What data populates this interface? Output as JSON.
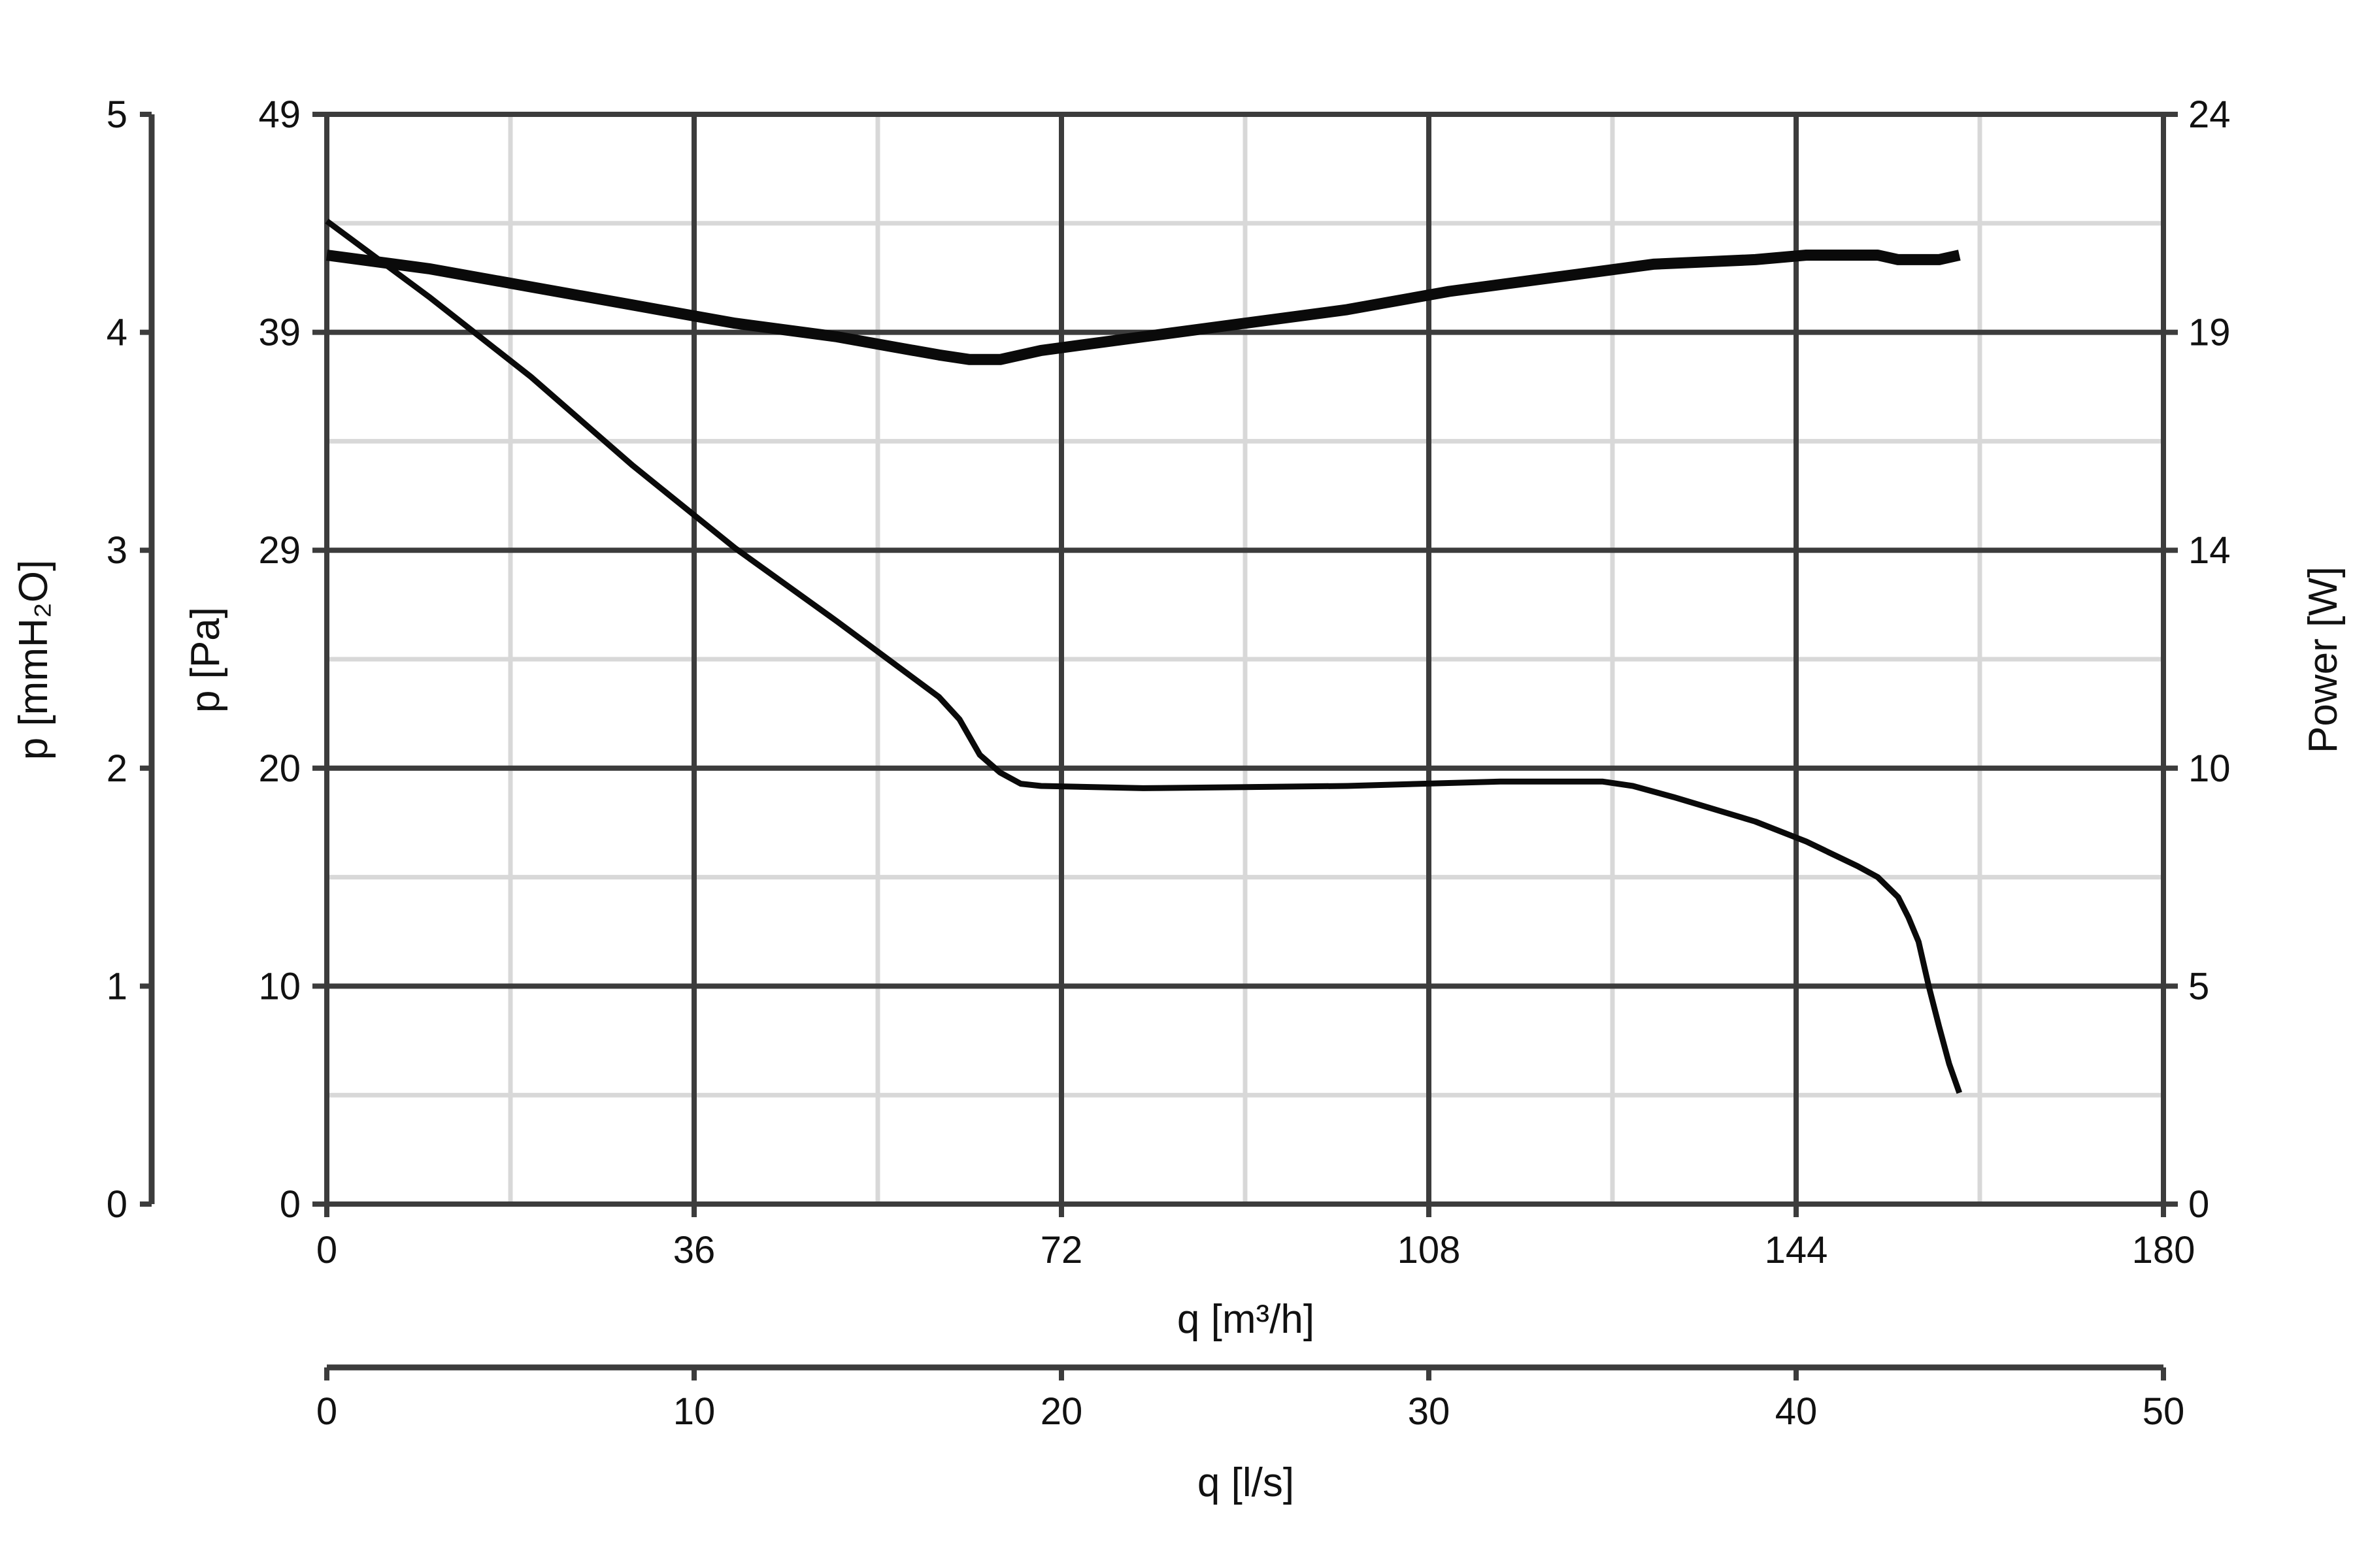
{
  "chart_data": {
    "type": "line",
    "xlabel": "q [m³/h]",
    "xlabel_secondary": "q [l/s]",
    "ylabel": "p [Pa]",
    "ylabel_secondary_left": "p [mmH₂O]",
    "ylabel_right": "Power [W]",
    "xlim": [
      0,
      180
    ],
    "ylim": [
      0,
      49
    ],
    "y_mmh2o_lim": [
      0,
      5
    ],
    "y_power_lim": [
      0,
      24
    ],
    "x_secondary_lim": [
      0,
      50
    ],
    "x_ticks": [
      "0",
      "36",
      "72",
      "108",
      "144",
      "180"
    ],
    "x_secondary_ticks": [
      "0",
      "10",
      "20",
      "30",
      "40",
      "50"
    ],
    "y_ticks": [
      "0",
      "10",
      "20",
      "29",
      "39",
      "49"
    ],
    "y_mmh2o_ticks": [
      "0",
      "1",
      "2",
      "3",
      "4",
      "5"
    ],
    "y_power_ticks": [
      "0",
      "5",
      "10",
      "14",
      "19",
      "24"
    ],
    "grid": true,
    "series": [
      {
        "axis": "pressure",
        "values": [
          [
            0,
            44.2
          ],
          [
            10,
            40.8
          ],
          [
            20,
            37.2
          ],
          [
            30,
            33.2
          ],
          [
            40,
            29.5
          ],
          [
            50,
            26.2
          ],
          [
            60,
            22.8
          ],
          [
            62,
            21.8
          ],
          [
            64,
            20.2
          ],
          [
            66,
            19.4
          ],
          [
            68,
            18.9
          ],
          [
            70,
            18.8
          ],
          [
            80,
            18.7
          ],
          [
            100,
            18.8
          ],
          [
            115,
            19.0
          ],
          [
            125,
            19.0
          ],
          [
            128,
            18.8
          ],
          [
            132,
            18.3
          ],
          [
            140,
            17.2
          ],
          [
            145,
            16.3
          ],
          [
            150,
            15.2
          ],
          [
            152,
            14.7
          ],
          [
            154,
            13.8
          ],
          [
            155,
            12.9
          ],
          [
            156,
            11.8
          ],
          [
            157,
            9.8
          ],
          [
            158,
            8.0
          ],
          [
            159,
            6.3
          ],
          [
            160,
            5.0
          ]
        ]
      },
      {
        "axis": "power",
        "values": [
          [
            0,
            20.9
          ],
          [
            10,
            20.6
          ],
          [
            20,
            20.2
          ],
          [
            30,
            19.8
          ],
          [
            40,
            19.4
          ],
          [
            50,
            19.1
          ],
          [
            55,
            18.9
          ],
          [
            60,
            18.7
          ],
          [
            63,
            18.6
          ],
          [
            66,
            18.6
          ],
          [
            70,
            18.8
          ],
          [
            80,
            19.1
          ],
          [
            90,
            19.4
          ],
          [
            100,
            19.7
          ],
          [
            110,
            20.1
          ],
          [
            120,
            20.4
          ],
          [
            130,
            20.7
          ],
          [
            140,
            20.8
          ],
          [
            145,
            20.9
          ],
          [
            152,
            20.9
          ],
          [
            154,
            20.8
          ],
          [
            156,
            20.8
          ],
          [
            158,
            20.8
          ],
          [
            160,
            20.9
          ]
        ]
      }
    ]
  }
}
